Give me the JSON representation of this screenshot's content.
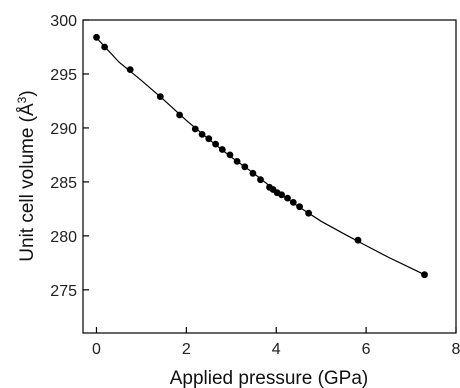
{
  "chart_data": {
    "type": "scatter",
    "title": "",
    "xlabel": "Applied pressure (GPa)",
    "ylabel_main": "Unit cell volume (Å",
    "ylabel_sup": "3",
    "ylabel_close": ")",
    "xlim": [
      -0.3,
      8
    ],
    "ylim": [
      271,
      300
    ],
    "x_ticks": [
      0,
      2,
      4,
      6,
      8
    ],
    "x_tick_labels": [
      "0",
      "2",
      "4",
      "6",
      "8"
    ],
    "y_ticks": [
      275,
      280,
      285,
      290,
      295,
      300
    ],
    "y_tick_labels": [
      "275",
      "280",
      "285",
      "290",
      "295",
      "300"
    ],
    "grid": false,
    "legend": "none",
    "series": [
      {
        "marker": "filled-circle",
        "points": [
          [
            0.0,
            298.4
          ],
          [
            0.18,
            297.5
          ],
          [
            0.75,
            295.4
          ],
          [
            1.42,
            292.9
          ],
          [
            1.85,
            291.2
          ],
          [
            2.2,
            289.9
          ],
          [
            2.35,
            289.4
          ],
          [
            2.5,
            289.0
          ],
          [
            2.65,
            288.5
          ],
          [
            2.8,
            288.0
          ],
          [
            2.97,
            287.5
          ],
          [
            3.13,
            286.9
          ],
          [
            3.3,
            286.4
          ],
          [
            3.48,
            285.8
          ],
          [
            3.65,
            285.2
          ],
          [
            3.85,
            284.5
          ],
          [
            3.93,
            284.3
          ],
          [
            4.02,
            284.0
          ],
          [
            4.12,
            283.8
          ],
          [
            4.25,
            283.5
          ],
          [
            4.38,
            283.1
          ],
          [
            4.52,
            282.7
          ],
          [
            4.72,
            282.1
          ],
          [
            5.82,
            279.6
          ],
          [
            7.3,
            276.4
          ]
        ]
      }
    ],
    "fit_curve": [
      [
        0.0,
        298.35
      ],
      [
        0.5,
        296.1
      ],
      [
        1.0,
        294.4
      ],
      [
        1.5,
        292.6
      ],
      [
        2.0,
        290.7
      ],
      [
        2.5,
        288.95
      ],
      [
        3.0,
        287.3
      ],
      [
        3.5,
        285.8
      ],
      [
        4.0,
        284.15
      ],
      [
        4.5,
        282.7
      ],
      [
        5.0,
        281.35
      ],
      [
        5.5,
        280.2
      ],
      [
        6.0,
        279.1
      ],
      [
        6.5,
        278.0
      ],
      [
        7.0,
        277.0
      ],
      [
        7.3,
        276.4
      ]
    ],
    "colors": {
      "axis": "#000000",
      "points": "#000000",
      "curve": "#000000"
    }
  }
}
